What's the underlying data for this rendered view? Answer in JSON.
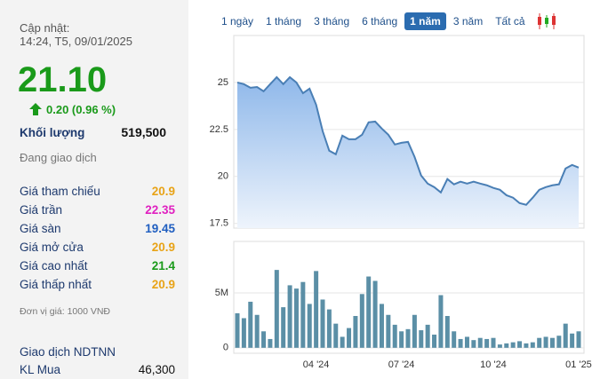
{
  "panel": {
    "update_label": "Cập nhật:",
    "update_time": "14:24, T5, 09/01/2025",
    "price": "21.10",
    "change": "0.20 (0.96 %)",
    "volume_label": "Khối lượng",
    "volume": "519,500",
    "status": "Đang giao dịch",
    "rows": [
      {
        "label": "Giá tham chiếu",
        "value": "20.9",
        "color": "#e8a317"
      },
      {
        "label": "Giá trần",
        "value": "22.35",
        "color": "#e020c0"
      },
      {
        "label": "Giá sàn",
        "value": "19.45",
        "color": "#1f5ec0"
      },
      {
        "label": "Giá mở cửa",
        "value": "20.9",
        "color": "#e8a317"
      },
      {
        "label": "Giá cao nhất",
        "value": "21.4",
        "color": "#1a9a1a"
      },
      {
        "label": "Giá thấp nhất",
        "value": "20.9",
        "color": "#e8a317"
      }
    ],
    "unit_note": "Đơn vị giá: 1000 VNĐ",
    "foreign_title": "Giao dịch NDTNN",
    "buy_label": "KL Mua",
    "buy_value": "46,300"
  },
  "tabs": [
    "1 ngày",
    "1 tháng",
    "3 tháng",
    "6 tháng",
    "1 năm",
    "3 năm",
    "Tất cả"
  ],
  "active_tab": 4,
  "chart_data": [
    {
      "type": "line",
      "color": "#4a7fb5",
      "ylim": [
        17.25,
        27.5
      ],
      "yticks": [
        17.5,
        20,
        22.5,
        25
      ],
      "grid": true,
      "values": [
        25.0,
        24.91,
        24.72,
        24.76,
        24.53,
        24.91,
        25.28,
        24.91,
        25.28,
        25.0,
        24.43,
        24.67,
        23.82,
        22.41,
        21.37,
        21.18,
        22.17,
        21.98,
        21.98,
        22.22,
        22.88,
        22.92,
        22.55,
        22.22,
        21.7,
        21.79,
        21.84,
        21.04,
        20.05,
        19.62,
        19.43,
        19.15,
        19.86,
        19.58,
        19.72,
        19.62,
        19.72,
        19.62,
        19.53,
        19.39,
        19.29,
        19.0,
        18.87,
        18.58,
        18.49,
        18.87,
        19.29,
        19.43,
        19.53,
        19.58,
        20.42,
        20.61,
        20.47
      ]
    },
    {
      "type": "bar",
      "color": "#5b8fa6",
      "ylim": [
        -0.5,
        9.7
      ],
      "yticks": [
        0,
        {
          "value": 5,
          "label": "5M"
        }
      ],
      "grid": true,
      "categories": [
        null,
        null,
        null,
        null,
        null,
        null,
        null,
        null,
        null,
        null,
        null,
        null,
        "04 '24",
        null,
        null,
        null,
        null,
        null,
        null,
        null,
        null,
        null,
        null,
        null,
        null,
        "07 '24",
        null,
        null,
        null,
        null,
        null,
        null,
        null,
        null,
        null,
        null,
        null,
        null,
        null,
        "10 '24",
        null,
        null,
        null,
        null,
        null,
        null,
        null,
        null,
        null,
        null,
        null,
        null,
        "01 '25"
      ],
      "values": [
        3.15,
        2.7,
        4.2,
        3.0,
        1.5,
        0.8,
        7.1,
        3.7,
        5.7,
        5.4,
        6.0,
        4.0,
        7.0,
        4.4,
        3.5,
        2.2,
        1.0,
        1.8,
        2.9,
        4.9,
        6.5,
        6.1,
        4.0,
        3.0,
        2.1,
        1.5,
        1.7,
        3.0,
        1.6,
        2.1,
        1.2,
        4.8,
        2.9,
        1.5,
        0.8,
        1.0,
        0.7,
        0.9,
        0.8,
        0.9,
        0.3,
        0.4,
        0.5,
        0.6,
        0.4,
        0.5,
        0.9,
        1.0,
        0.9,
        1.1,
        2.2,
        1.3,
        1.5
      ]
    }
  ]
}
